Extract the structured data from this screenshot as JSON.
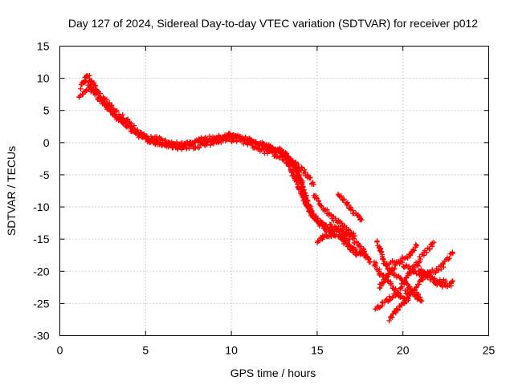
{
  "chart_data": {
    "type": "scatter",
    "title": "Day 127 of 2024, Sidereal Day-to-day VTEC variation (SDTVAR) for receiver p012",
    "xlabel": "GPS time / hours",
    "ylabel": "SDTVAR / TECUs",
    "xlim": [
      0,
      25
    ],
    "ylim": [
      -30,
      15
    ],
    "xticks": [
      "0",
      "5",
      "10",
      "15",
      "20",
      "25"
    ],
    "yticks": [
      "15",
      "10",
      "5",
      "0",
      "-5",
      "-10",
      "-15",
      "-20",
      "-25",
      "-30"
    ],
    "grid": true,
    "marker": "+",
    "color": "#ff0000",
    "series": [
      {
        "name": "p012",
        "tracks": [
          [
            [
              1.2,
              8.5
            ],
            [
              1.6,
              10.5
            ],
            [
              2.0,
              9.0
            ],
            [
              2.6,
              6.0
            ],
            [
              3.2,
              4.0
            ],
            [
              3.8,
              3.0
            ],
            [
              4.3,
              2.0
            ],
            [
              5.0,
              1.0
            ],
            [
              5.8,
              0.5
            ],
            [
              6.5,
              0.0
            ],
            [
              7.2,
              -0.5
            ],
            [
              8.0,
              0.2
            ],
            [
              9.0,
              0.5
            ],
            [
              9.8,
              1.0
            ],
            [
              10.5,
              0.8
            ],
            [
              11.2,
              0.3
            ],
            [
              11.8,
              -0.3
            ],
            [
              12.4,
              -0.8
            ],
            [
              12.9,
              -1.2
            ],
            [
              13.3,
              -2.0
            ],
            [
              13.7,
              -4.0
            ],
            [
              14.0,
              -6.0
            ],
            [
              14.3,
              -8.5
            ],
            [
              14.7,
              -11.0
            ],
            [
              15.2,
              -12.5
            ],
            [
              15.8,
              -13.5
            ],
            [
              16.4,
              -14.0
            ],
            [
              16.9,
              -15.0
            ]
          ],
          [
            [
              1.1,
              7.2
            ],
            [
              1.7,
              8.5
            ],
            [
              2.2,
              7.0
            ],
            [
              2.9,
              5.0
            ],
            [
              3.5,
              3.5
            ],
            [
              4.1,
              2.2
            ],
            [
              4.8,
              0.8
            ],
            [
              5.5,
              0.0
            ],
            [
              6.3,
              -0.4
            ],
            [
              7.0,
              -0.8
            ],
            [
              7.8,
              -0.6
            ],
            [
              8.6,
              -0.2
            ],
            [
              9.4,
              0.3
            ],
            [
              10.2,
              0.5
            ],
            [
              10.9,
              0.0
            ],
            [
              11.5,
              -0.8
            ],
            [
              12.1,
              -1.5
            ],
            [
              12.7,
              -2.0
            ],
            [
              13.2,
              -3.0
            ],
            [
              13.6,
              -5.0
            ],
            [
              14.0,
              -7.5
            ],
            [
              14.4,
              -10.0
            ],
            [
              14.9,
              -12.0
            ],
            [
              15.5,
              -13.5
            ],
            [
              16.2,
              -14.5
            ],
            [
              16.8,
              -16.0
            ],
            [
              17.3,
              -17.5
            ]
          ],
          [
            [
              1.5,
              9.5
            ],
            [
              2.1,
              8.0
            ],
            [
              2.7,
              6.5
            ],
            [
              3.3,
              4.8
            ],
            [
              4.0,
              3.2
            ],
            [
              4.6,
              1.5
            ],
            [
              5.3,
              0.4
            ],
            [
              6.0,
              -0.2
            ],
            [
              6.8,
              -0.6
            ],
            [
              7.5,
              -0.2
            ],
            [
              8.3,
              0.5
            ],
            [
              9.1,
              0.9
            ],
            [
              9.9,
              1.2
            ],
            [
              10.6,
              0.7
            ],
            [
              11.3,
              0.0
            ],
            [
              11.9,
              -0.4
            ],
            [
              12.5,
              -1.0
            ],
            [
              13.0,
              -1.6
            ],
            [
              13.5,
              -2.8
            ],
            [
              13.9,
              -4.5
            ],
            [
              14.2,
              -7.0
            ],
            [
              14.5,
              -9.5
            ],
            [
              14.8,
              -11.5
            ],
            [
              15.3,
              -12.8
            ],
            [
              16.0,
              -13.2
            ],
            [
              16.7,
              -13.8
            ],
            [
              17.2,
              -14.5
            ]
          ],
          [
            [
              12.0,
              -0.6
            ],
            [
              12.6,
              -1.4
            ],
            [
              13.2,
              -2.2
            ],
            [
              13.6,
              -3.0
            ],
            [
              14.0,
              -3.8
            ],
            [
              14.4,
              -5.0
            ],
            [
              14.8,
              -6.5
            ]
          ],
          [
            [
              14.8,
              -8.0
            ],
            [
              15.3,
              -10.0
            ],
            [
              15.8,
              -11.5
            ],
            [
              16.3,
              -12.5
            ],
            [
              16.8,
              -13.5
            ],
            [
              17.2,
              -15.5
            ],
            [
              17.6,
              -16.5
            ],
            [
              17.9,
              -17.5
            ],
            [
              18.1,
              -18.5
            ]
          ],
          [
            [
              16.2,
              -8.0
            ],
            [
              16.6,
              -9.0
            ],
            [
              17.0,
              -10.5
            ],
            [
              17.4,
              -11.5
            ],
            [
              17.6,
              -12.0
            ]
          ],
          [
            [
              15.0,
              -15.5
            ],
            [
              15.3,
              -14.8
            ],
            [
              15.6,
              -14.6
            ],
            [
              16.0,
              -14.2
            ]
          ],
          [
            [
              16.5,
              -14.5
            ],
            [
              16.9,
              -15.8
            ],
            [
              17.3,
              -16.8
            ],
            [
              17.6,
              -17.2
            ],
            [
              17.9,
              -17.8
            ]
          ],
          [
            [
              18.5,
              -15.5
            ],
            [
              18.9,
              -18.5
            ],
            [
              19.4,
              -20.5
            ],
            [
              20.0,
              -21.5
            ],
            [
              20.5,
              -23.0
            ],
            [
              21.0,
              -24.0
            ]
          ],
          [
            [
              18.3,
              -18.5
            ],
            [
              18.7,
              -20.5
            ],
            [
              19.3,
              -22.0
            ],
            [
              19.8,
              -24.0
            ],
            [
              20.3,
              -24.5
            ]
          ],
          [
            [
              18.4,
              -25.8
            ],
            [
              18.8,
              -25.0
            ],
            [
              19.3,
              -24.0
            ],
            [
              19.8,
              -23.0
            ],
            [
              20.2,
              -21.0
            ],
            [
              20.6,
              -19.5
            ],
            [
              21.0,
              -18.0
            ],
            [
              21.5,
              -16.5
            ],
            [
              21.8,
              -15.5
            ]
          ],
          [
            [
              19.2,
              -27.5
            ],
            [
              19.7,
              -26.0
            ],
            [
              20.2,
              -24.5
            ],
            [
              20.7,
              -22.5
            ],
            [
              21.2,
              -21.0
            ],
            [
              21.6,
              -20.2
            ]
          ],
          [
            [
              18.6,
              -22.5
            ],
            [
              19.1,
              -20.5
            ],
            [
              19.6,
              -19.0
            ],
            [
              20.0,
              -18.0
            ],
            [
              20.4,
              -17.5
            ],
            [
              20.8,
              -16.0
            ]
          ],
          [
            [
              19.0,
              -19.0
            ],
            [
              19.5,
              -18.6
            ],
            [
              20.0,
              -19.0
            ],
            [
              20.5,
              -19.8
            ],
            [
              21.0,
              -20.5
            ],
            [
              21.5,
              -20.8
            ],
            [
              22.0,
              -21.5
            ],
            [
              22.5,
              -21.5
            ]
          ],
          [
            [
              20.9,
              -19.5
            ],
            [
              21.3,
              -20.3
            ],
            [
              21.8,
              -20.0
            ],
            [
              22.2,
              -19.5
            ],
            [
              22.6,
              -18.0
            ],
            [
              22.9,
              -17.2
            ]
          ],
          [
            [
              21.3,
              -20.5
            ],
            [
              21.8,
              -21.5
            ],
            [
              22.3,
              -22.5
            ],
            [
              22.7,
              -22.3
            ],
            [
              22.9,
              -21.5
            ]
          ],
          [
            [
              20.1,
              -23.0
            ],
            [
              20.5,
              -23.6
            ],
            [
              20.9,
              -24.3
            ],
            [
              21.1,
              -24.6
            ]
          ]
        ]
      }
    ]
  }
}
